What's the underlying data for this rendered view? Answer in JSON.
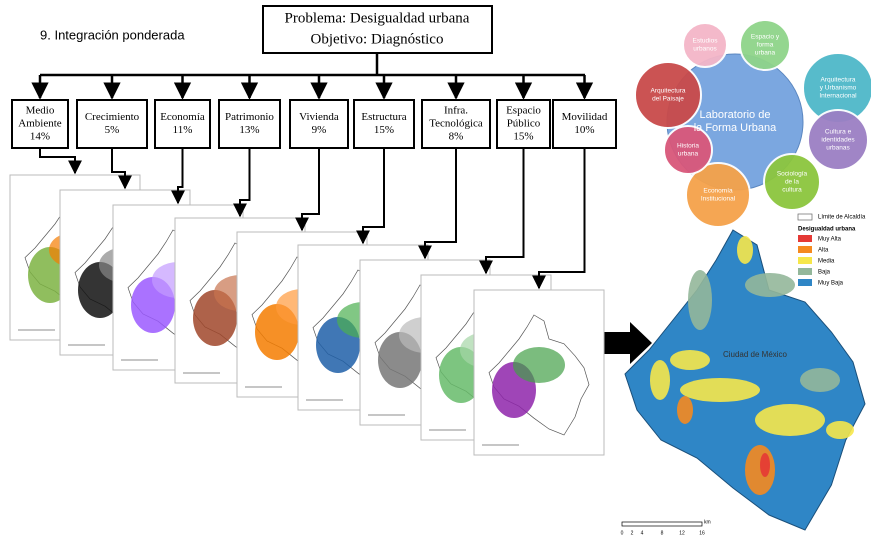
{
  "heading": "9. Integración ponderada",
  "main_box": {
    "lines": [
      "Problema: Desigualdad urbana",
      "Objetivo: Diagnóstico"
    ]
  },
  "criteria": [
    {
      "name": [
        "Medio",
        "Ambiente"
      ],
      "weight": "14%"
    },
    {
      "name": [
        "Crecimiento"
      ],
      "weight": "5%"
    },
    {
      "name": [
        "Economía"
      ],
      "weight": "11%"
    },
    {
      "name": [
        "Patrimonio"
      ],
      "weight": "13%"
    },
    {
      "name": [
        "Vivienda"
      ],
      "weight": "9%"
    },
    {
      "name": [
        "Estructura"
      ],
      "weight": "15%"
    },
    {
      "name": [
        "Infra.",
        "Tecnológica"
      ],
      "weight": "8%"
    },
    {
      "name": [
        "Espacio",
        "Público"
      ],
      "weight": "15%"
    },
    {
      "name": [
        "Movilidad"
      ],
      "weight": "10%"
    }
  ],
  "network": {
    "center": [
      "Laboratorio de",
      "la Forma Urbana"
    ],
    "nodes": [
      {
        "lines": [
          "Estudios",
          "urbanos"
        ]
      },
      {
        "lines": [
          "Espacio y",
          "forma",
          "urbana"
        ]
      },
      {
        "lines": [
          "Arquitectura",
          "y Urbanismo",
          "Internacional"
        ]
      },
      {
        "lines": [
          "Cultura e",
          "identidades",
          "urbanas"
        ]
      },
      {
        "lines": [
          "Sociología",
          "de la",
          "cultura"
        ]
      },
      {
        "lines": [
          "Economía",
          "Institucional"
        ]
      },
      {
        "lines": [
          "Historia",
          "urbana"
        ]
      },
      {
        "lines": [
          "Arquitectura",
          "del Paisaje"
        ]
      }
    ]
  },
  "legend": {
    "boundary": "Límite de Alcaldía",
    "title": "Desigualdad urbana",
    "items": [
      "Muy Alta",
      "Alta",
      "Media",
      "Baja",
      "Muy Baja"
    ]
  },
  "map_label": "Ciudad de México",
  "scale": {
    "ticks": [
      "0",
      "2",
      "4",
      "8",
      "12",
      "16"
    ],
    "unit": "km"
  }
}
